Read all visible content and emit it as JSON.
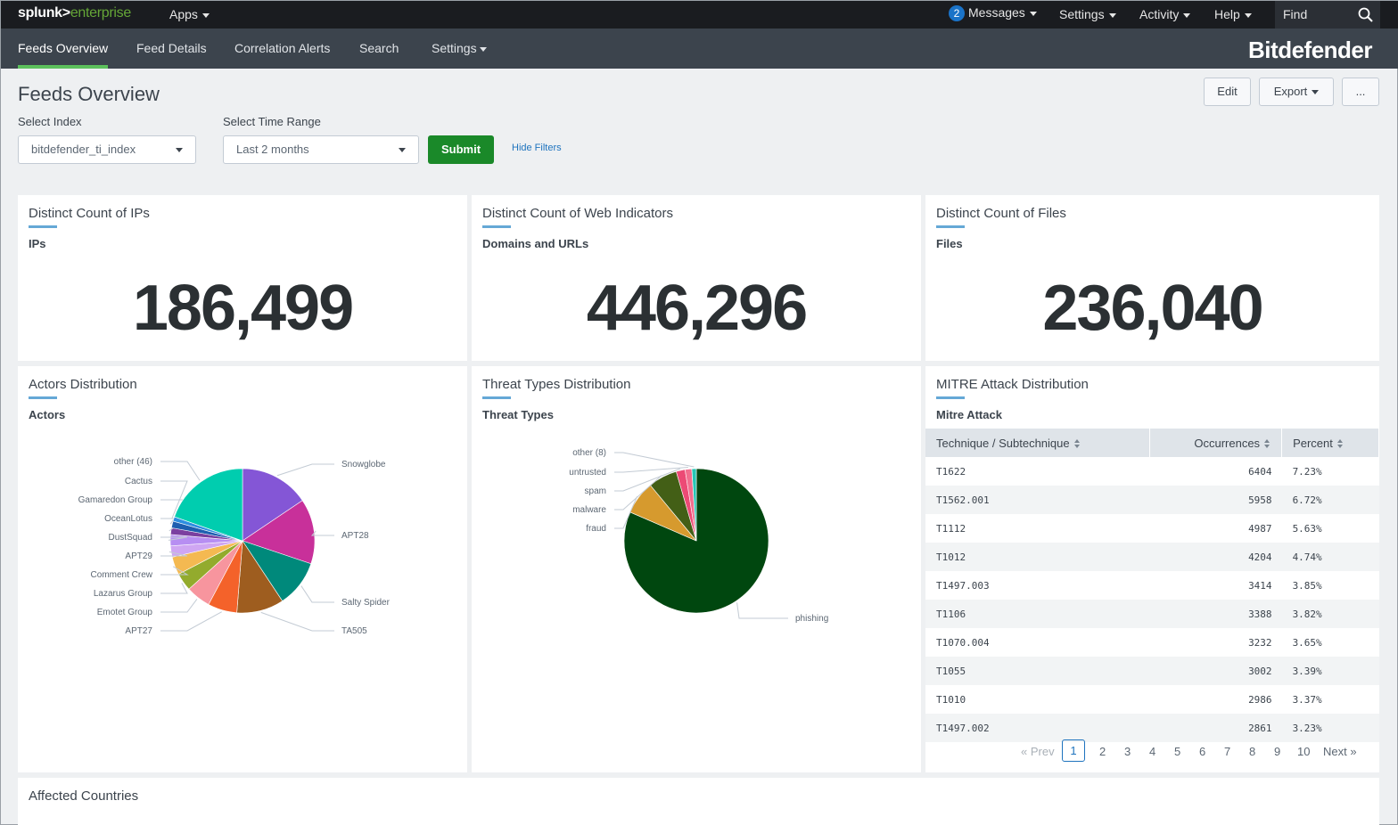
{
  "topbar": {
    "logo_main": "splunk>",
    "logo_sub": "enterprise",
    "apps": "Apps",
    "messages_count": "2",
    "messages": "Messages",
    "settings": "Settings",
    "activity": "Activity",
    "help": "Help",
    "find": "Find"
  },
  "appbar": {
    "tabs": [
      "Feeds Overview",
      "Feed Details",
      "Correlation Alerts",
      "Search",
      "Settings"
    ],
    "brand": "Bitdefender"
  },
  "page": {
    "title": "Feeds Overview",
    "edit": "Edit",
    "export": "Export",
    "more": "..."
  },
  "filters": {
    "index_label": "Select Index",
    "index_value": "bitdefender_ti_index",
    "time_label": "Select Time Range",
    "time_value": "Last 2 months",
    "submit": "Submit",
    "hide": "Hide Filters"
  },
  "panels": {
    "ips": {
      "title": "Distinct Count of IPs",
      "sub": "IPs",
      "value": "186,499"
    },
    "web": {
      "title": "Distinct Count of Web Indicators",
      "sub": "Domains and URLs",
      "value": "446,296"
    },
    "files": {
      "title": "Distinct Count of Files",
      "sub": "Files",
      "value": "236,040"
    },
    "actors": {
      "title": "Actors Distribution",
      "sub": "Actors"
    },
    "threats": {
      "title": "Threat Types Distribution",
      "sub": "Threat Types"
    },
    "mitre": {
      "title": "MITRE Attack Distribution",
      "sub": "Mitre Attack"
    },
    "countries": {
      "title": "Affected Countries"
    }
  },
  "mitre_table": {
    "headers": [
      "Technique / Subtechnique",
      "Occurrences",
      "Percent"
    ],
    "rows": [
      [
        "T1622",
        "6404",
        "7.23%"
      ],
      [
        "T1562.001",
        "5958",
        "6.72%"
      ],
      [
        "T1112",
        "4987",
        "5.63%"
      ],
      [
        "T1012",
        "4204",
        "4.74%"
      ],
      [
        "T1497.003",
        "3414",
        "3.85%"
      ],
      [
        "T1106",
        "3388",
        "3.82%"
      ],
      [
        "T1070.004",
        "3232",
        "3.65%"
      ],
      [
        "T1055",
        "3002",
        "3.39%"
      ],
      [
        "T1010",
        "2986",
        "3.37%"
      ],
      [
        "T1497.002",
        "2861",
        "3.23%"
      ]
    ],
    "pager": {
      "prev": "« Prev",
      "pages": [
        "1",
        "2",
        "3",
        "4",
        "5",
        "6",
        "7",
        "8",
        "9",
        "10"
      ],
      "next": "Next »",
      "current": "1"
    }
  },
  "chart_data": [
    {
      "type": "pie",
      "title": "Actors",
      "categories": [
        "Snowglobe",
        "APT28",
        "Salty Spider",
        "TA505",
        "APT27",
        "Emotet Group",
        "Lazarus Group",
        "Comment Crew",
        "APT29",
        "DustSquad",
        "OceanLotus",
        "Gamaredon Group",
        "Cactus",
        "other (46)"
      ],
      "values": [
        15.5,
        14.5,
        10.5,
        10.5,
        6.5,
        5.5,
        4.0,
        4.0,
        2.5,
        2.5,
        1.5,
        1.5,
        1.0,
        19.5
      ],
      "colors": [
        "#8456d6",
        "#c8309a",
        "#00897b",
        "#9e5d1f",
        "#f4622a",
        "#f7959e",
        "#93ab2d",
        "#f4b951",
        "#cfa6f2",
        "#b78ef2",
        "#7b3fa0",
        "#1e5fb0",
        "#2d8ee0",
        "#00cdaf"
      ]
    },
    {
      "type": "pie",
      "title": "Threat Types",
      "categories": [
        "phishing",
        "fraud",
        "malware",
        "spam",
        "untrusted",
        "other (8)"
      ],
      "values": [
        81.5,
        7.5,
        6.5,
        2.0,
        1.5,
        1.0
      ],
      "colors": [
        "#00470f",
        "#d69a2e",
        "#435f16",
        "#ec4a75",
        "#f26e8e",
        "#26c6b5"
      ]
    }
  ]
}
